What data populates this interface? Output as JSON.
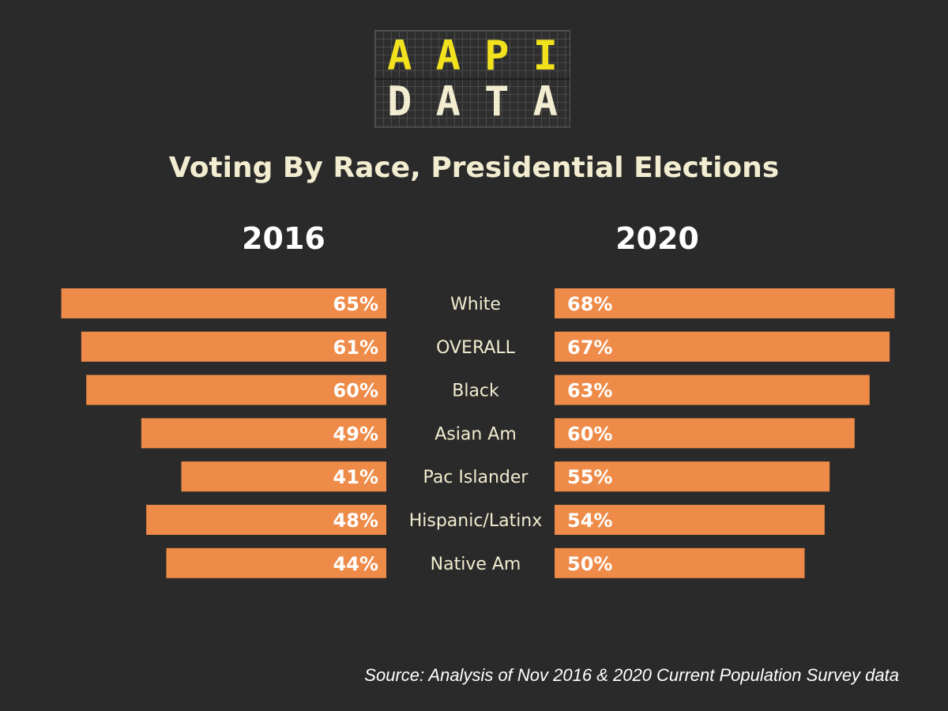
{
  "logo": {
    "row1": [
      "A",
      "A",
      "P",
      "I"
    ],
    "row2": [
      "D",
      "A",
      "T",
      "A"
    ],
    "colors": {
      "row1": "#f2e21e",
      "row2": "#f2ecd0"
    }
  },
  "colors": {
    "background": "#2a2a2a",
    "bar": "#ee8b49",
    "text": "#f2ecd0"
  },
  "source": "Source: Analysis of Nov 2016 & 2020 Current Population Survey data",
  "chart_data": {
    "type": "bar",
    "title": "Voting By Race, Presidential Elections",
    "categories": [
      "White",
      "OVERALL",
      "Black",
      "Asian Am",
      "Pac Islander",
      "Hispanic/Latinx",
      "Native Am"
    ],
    "series": [
      {
        "name": "2016",
        "values": [
          65,
          61,
          60,
          49,
          41,
          48,
          44
        ],
        "labels": [
          "65%",
          "61%",
          "60%",
          "49%",
          "41%",
          "48%",
          "44%"
        ]
      },
      {
        "name": "2020",
        "values": [
          68,
          67,
          63,
          60,
          55,
          54,
          50
        ],
        "labels": [
          "68%",
          "67%",
          "63%",
          "60%",
          "55%",
          "54%",
          "50%"
        ]
      }
    ],
    "xlabel": "",
    "ylabel": "",
    "ylim": [
      0,
      70
    ]
  }
}
